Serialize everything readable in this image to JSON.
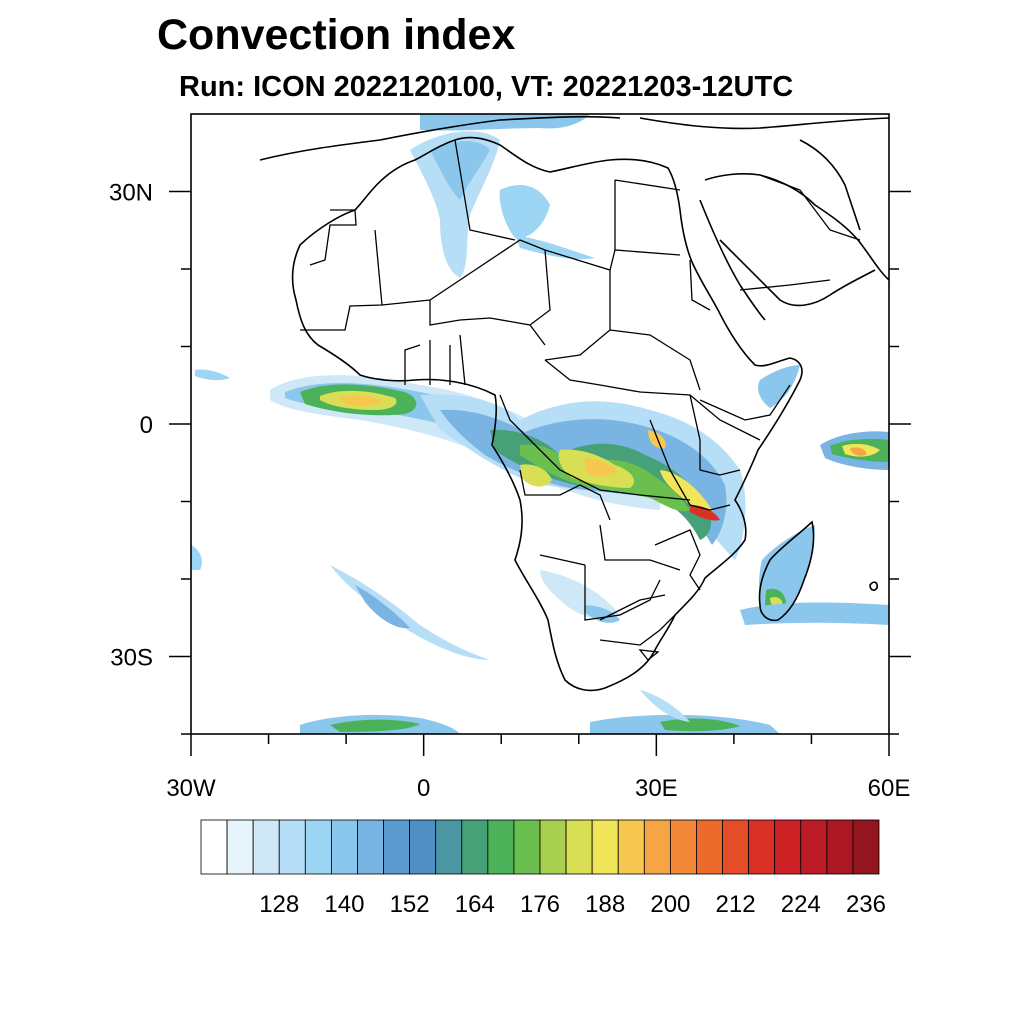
{
  "title": "Convection index",
  "subtitle": "Run: ICON 2022120100,  VT: 20221203-12UTC",
  "map": {
    "lon_range": [
      -30,
      60
    ],
    "lat_range": [
      -40,
      40
    ],
    "x_ticks": [
      {
        "lon": -30,
        "label": "30W"
      },
      {
        "lon": 0,
        "label": "0"
      },
      {
        "lon": 30,
        "label": "30E"
      },
      {
        "lon": 60,
        "label": "60E"
      }
    ],
    "y_ticks": [
      {
        "lat": 30,
        "label": "30N"
      },
      {
        "lat": 0,
        "label": "0"
      },
      {
        "lat": -30,
        "label": "30S"
      }
    ],
    "minor_x_ticks": [
      -20,
      -10,
      10,
      20,
      40,
      50
    ],
    "minor_y_ticks": [
      20,
      10,
      -10,
      -20,
      -40
    ],
    "field": "Convection index"
  },
  "colorbar": {
    "colors": [
      "#ffffff",
      "#e8f4fc",
      "#cfe8f8",
      "#b6def6",
      "#9dd5f4",
      "#8bc6ec",
      "#79b4e3",
      "#5c9bd0",
      "#4f8fc4",
      "#4a97a3",
      "#47a178",
      "#4cb25a",
      "#6bbf4f",
      "#a8cf4d",
      "#d9df55",
      "#f1e55a",
      "#f6c84f",
      "#f5a544",
      "#f18837",
      "#ec6a2c",
      "#e44d27",
      "#da3126",
      "#cc2226",
      "#bd1b25",
      "#ab1723",
      "#93151f"
    ],
    "labels": [
      "128",
      "140",
      "152",
      "164",
      "176",
      "188",
      "200",
      "212",
      "224",
      "236"
    ]
  }
}
